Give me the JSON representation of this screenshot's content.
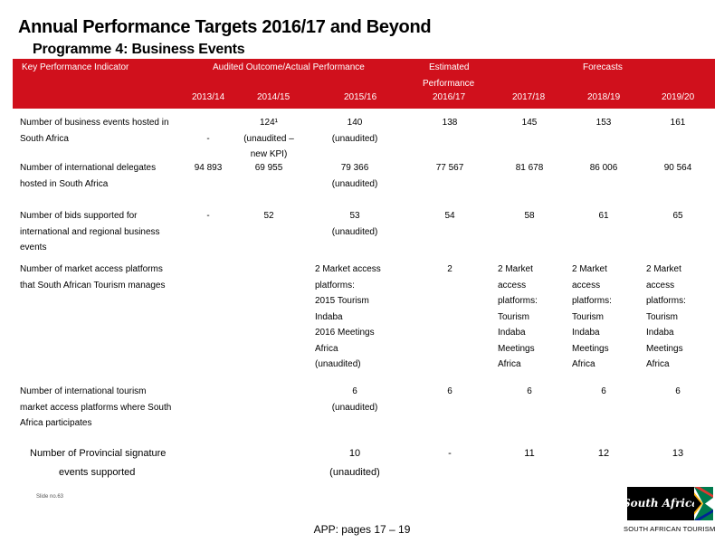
{
  "title": "Annual Performance Targets 2016/17 and Beyond",
  "subtitle": "Programme 4: Business Events",
  "header": {
    "kpi": "Key Performance Indicator",
    "audited": "Audited Outcome/Actual Performance",
    "estimated_line1": "Estimated",
    "estimated_line2": "Performance",
    "forecasts": "Forecasts",
    "years": [
      "2013/14",
      "2014/15",
      "2015/16",
      "2016/17",
      "2017/18",
      "2018/19",
      "2019/20"
    ]
  },
  "rows": [
    {
      "kpi": [
        "Number of business events hosted in",
        "South Africa"
      ],
      "cells": [
        [
          "",
          "-"
        ],
        [
          "124¹",
          "(unaudited –",
          "new KPI)"
        ],
        [
          "140",
          "(unaudited)"
        ],
        [
          "138"
        ],
        [
          "145"
        ],
        [
          "153"
        ],
        [
          "161"
        ]
      ]
    },
    {
      "kpi": [
        "Number of international delegates",
        "hosted in South Africa"
      ],
      "cells": [
        [
          "94 893"
        ],
        [
          "69 955"
        ],
        [
          "79 366",
          "(unaudited)"
        ],
        [
          "77 567"
        ],
        [
          "81 678"
        ],
        [
          "86 006"
        ],
        [
          "90 564"
        ]
      ]
    },
    {
      "kpi": [
        "Number of bids supported for",
        "international and regional business",
        "events"
      ],
      "cells": [
        [
          "-"
        ],
        [
          "52"
        ],
        [
          "53",
          "(unaudited)"
        ],
        [
          "54"
        ],
        [
          "58"
        ],
        [
          "61"
        ],
        [
          "65"
        ]
      ]
    },
    {
      "kpi": [
        "Number of market access platforms",
        "that South African Tourism manages"
      ],
      "cells": [
        [],
        [],
        [
          "2 Market access",
          "platforms:",
          " 2015 Tourism",
          "Indaba",
          " 2016 Meetings",
          "Africa",
          "(unaudited)"
        ],
        [
          "2"
        ],
        [
          "2 Market",
          "access",
          "platforms:",
          " Tourism",
          "Indaba",
          " Meetings",
          "Africa"
        ],
        [
          "2 Market",
          "access",
          "platforms:",
          " Tourism",
          "Indaba",
          " Meetings",
          "Africa"
        ],
        [
          "2 Market",
          "access",
          "platforms:",
          " Tourism",
          "Indaba",
          " Meetings",
          "Africa"
        ]
      ]
    },
    {
      "kpi": [
        "Number of international tourism",
        "market access platforms where South",
        "Africa participates"
      ],
      "cells": [
        [],
        [],
        [
          "6",
          "(unaudited)"
        ],
        [
          "6"
        ],
        [
          "6"
        ],
        [
          "6"
        ],
        [
          "6"
        ]
      ]
    },
    {
      "kpi": [
        "Number of Provincial signature",
        "events supported"
      ],
      "cells": [
        [],
        [],
        [
          "10",
          "(unaudited)"
        ],
        [
          "-"
        ],
        [
          "11"
        ],
        [
          "12"
        ],
        [
          "13"
        ]
      ]
    }
  ],
  "slide_label": "Slide no.63",
  "footer": "APP: pages 17 – 19",
  "logo": {
    "wordmark": "South Africa",
    "caption": "SOUTH AFRICAN TOURISM"
  }
}
